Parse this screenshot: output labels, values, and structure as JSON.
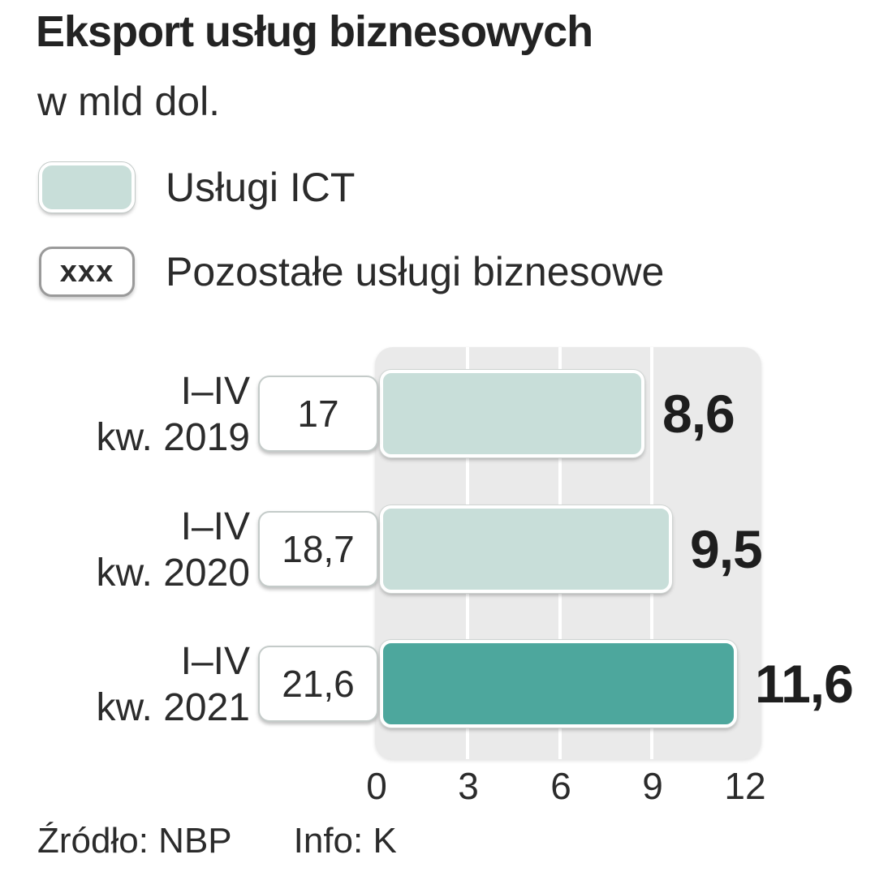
{
  "header": {
    "title": "Eksport usług biznesowych",
    "subtitle": "w mld dol."
  },
  "legend": {
    "ict_label": "Usługi ICT",
    "other_swatch_text": "xxx",
    "other_label": "Pozostałe usługi biznesowe"
  },
  "chart_data": {
    "type": "bar",
    "orientation": "horizontal",
    "title": "Eksport usług biznesowych",
    "unit": "mld dol.",
    "xlim": [
      0,
      12
    ],
    "x_ticks": [
      0,
      3,
      6,
      9,
      12
    ],
    "x_tick_labels": [
      "0",
      "3",
      "6",
      "9",
      "12"
    ],
    "grid": true,
    "categories": [
      "I–IV kw. 2019",
      "I–IV kw. 2020",
      "I–IV kw. 2021"
    ],
    "series": [
      {
        "name": "Usługi ICT",
        "values": [
          8.6,
          9.5,
          11.6
        ]
      },
      {
        "name": "Pozostałe usługi biznesowe",
        "values": [
          17,
          18.7,
          21.6
        ]
      }
    ],
    "rows": [
      {
        "label_line1": "I–IV",
        "label_line2": "kw. 2019",
        "other_value": "17",
        "ict_value": "8,6",
        "ict_numeric": 8.6,
        "highlight": false
      },
      {
        "label_line1": "I–IV",
        "label_line2": "kw. 2020",
        "other_value": "18,7",
        "ict_value": "9,5",
        "ict_numeric": 9.5,
        "highlight": false
      },
      {
        "label_line1": "I–IV",
        "label_line2": "kw. 2021",
        "other_value": "21,6",
        "ict_value": "11,6",
        "ict_numeric": 11.6,
        "highlight": true
      }
    ]
  },
  "footer": {
    "source": "Źródło: NBP",
    "info": "Info: K"
  },
  "colors": {
    "ict_light": "#c8ded9",
    "ict_dark": "#4da79d",
    "plot_background": "#eaeaea",
    "text": "#2b2b2b"
  }
}
